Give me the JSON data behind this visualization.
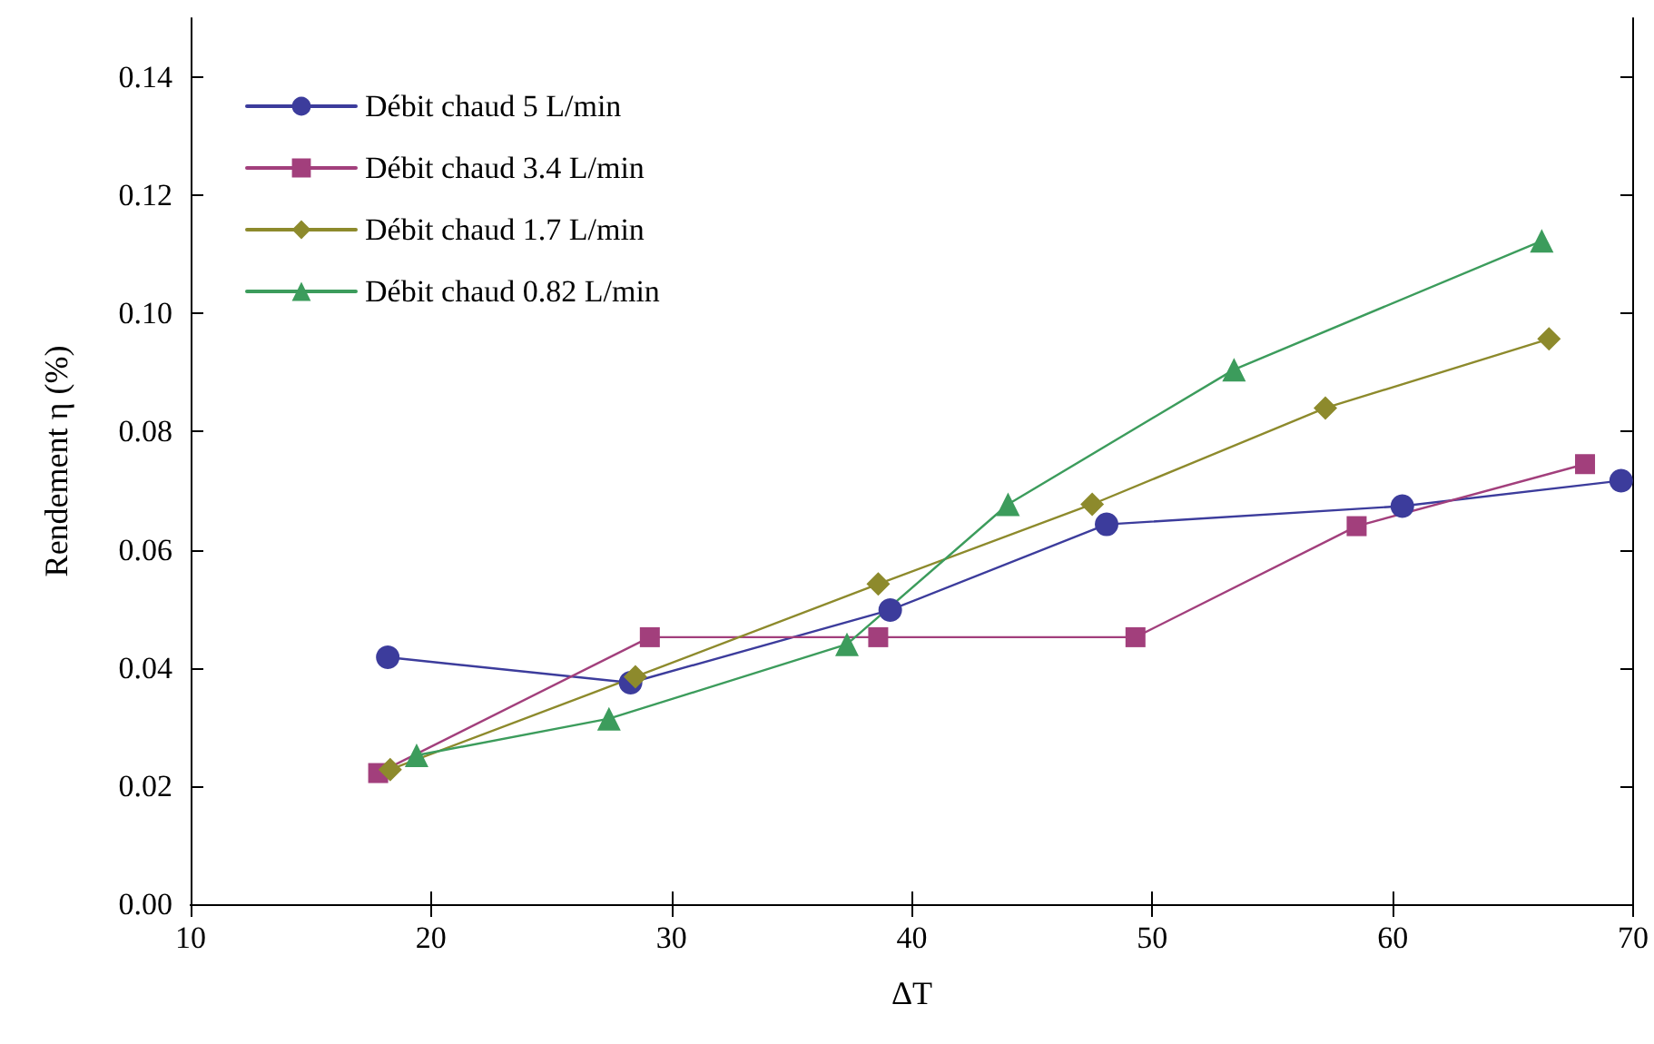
{
  "chart_data": {
    "type": "line",
    "xlabel": "ΔT",
    "ylabel": "Rendement η (%)",
    "xlim": [
      10,
      70
    ],
    "xticks": [
      10,
      20,
      30,
      40,
      50,
      60,
      70
    ],
    "ylim": [
      0,
      0.15
    ],
    "yticks": [
      {
        "value": 0,
        "label": "0.00"
      },
      0.02,
      0.04,
      0.06,
      0.08,
      {
        "value": 0.1,
        "label": "0.10"
      },
      0.12,
      0.14
    ],
    "grid": false,
    "legend": "top left",
    "line_style": "solid",
    "series": [
      {
        "name": "Débit chaud 5 L/min",
        "color": "#3c3c9c",
        "marker": "circle",
        "x": [
          18.2,
          28.3,
          39.1,
          48.1,
          60.4,
          69.5
        ],
        "values": [
          0.0418,
          0.0375,
          0.0498,
          0.0643,
          0.0674,
          0.0717
        ]
      },
      {
        "name": "Débit chaud 3.4 L/min",
        "color": "#a23f7c",
        "marker": "square",
        "x": [
          17.8,
          29.1,
          38.6,
          49.3,
          58.5,
          68.0
        ],
        "values": [
          0.0222,
          0.0452,
          0.0452,
          0.0452,
          0.064,
          0.0745
        ]
      },
      {
        "name": "Débit chaud 1.7 L/min",
        "color": "#8d8a2c",
        "marker": "diamond",
        "x": [
          18.3,
          28.5,
          38.6,
          47.5,
          57.2,
          66.5
        ],
        "values": [
          0.0228,
          0.0385,
          0.0542,
          0.0677,
          0.084,
          0.0957
        ]
      },
      {
        "name": "Débit chaud 0.82 L/min",
        "color": "#3c9c5c",
        "marker": "triangle",
        "x": [
          19.4,
          27.4,
          37.3,
          44.0,
          53.4,
          66.2
        ],
        "values": [
          0.0252,
          0.0314,
          0.044,
          0.0677,
          0.0905,
          0.1123
        ]
      }
    ]
  }
}
